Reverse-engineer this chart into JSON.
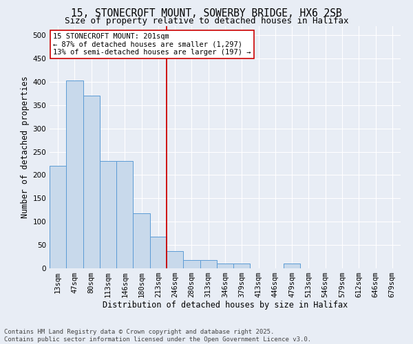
{
  "title_line1": "15, STONECROFT MOUNT, SOWERBY BRIDGE, HX6 2SB",
  "title_line2": "Size of property relative to detached houses in Halifax",
  "xlabel": "Distribution of detached houses by size in Halifax",
  "ylabel": "Number of detached properties",
  "categories": [
    "13sqm",
    "47sqm",
    "80sqm",
    "113sqm",
    "146sqm",
    "180sqm",
    "213sqm",
    "246sqm",
    "280sqm",
    "313sqm",
    "346sqm",
    "379sqm",
    "413sqm",
    "446sqm",
    "479sqm",
    "513sqm",
    "546sqm",
    "579sqm",
    "612sqm",
    "646sqm",
    "679sqm"
  ],
  "values": [
    220,
    403,
    370,
    230,
    230,
    118,
    68,
    37,
    18,
    18,
    10,
    10,
    0,
    0,
    10,
    0,
    0,
    0,
    0,
    0,
    0
  ],
  "bar_color": "#c8d9eb",
  "bar_edge_color": "#5b9bd5",
  "vline_x": 6.5,
  "vline_color": "#cc0000",
  "annotation_text": "15 STONECROFT MOUNT: 201sqm\n← 87% of detached houses are smaller (1,297)\n13% of semi-detached houses are larger (197) →",
  "annotation_box_color": "#ffffff",
  "annotation_box_edge": "#cc0000",
  "ylim": [
    0,
    520
  ],
  "yticks": [
    0,
    50,
    100,
    150,
    200,
    250,
    300,
    350,
    400,
    450,
    500
  ],
  "background_color": "#e8edf5",
  "plot_bg_color": "#e8edf5",
  "footer_line1": "Contains HM Land Registry data © Crown copyright and database right 2025.",
  "footer_line2": "Contains public sector information licensed under the Open Government Licence v3.0.",
  "title_fontsize": 10.5,
  "subtitle_fontsize": 9,
  "label_fontsize": 8.5,
  "tick_fontsize": 7.5,
  "footer_fontsize": 6.5,
  "ann_fontsize": 7.5
}
